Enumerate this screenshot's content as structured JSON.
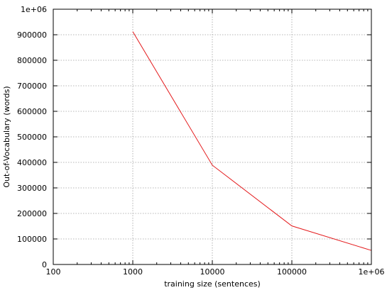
{
  "chart_data": {
    "type": "line",
    "xlabel": "training size (sentences)",
    "ylabel": "Out-of-Vocabulary (words)",
    "xscale": "log",
    "xlim": [
      100,
      1000000
    ],
    "ylim": [
      0,
      1000000
    ],
    "grid": true,
    "x_ticks": [
      {
        "value": 100,
        "label": "100"
      },
      {
        "value": 1000,
        "label": "1000"
      },
      {
        "value": 10000,
        "label": "10000"
      },
      {
        "value": 100000,
        "label": "100000"
      },
      {
        "value": 1000000,
        "label": "1e+06"
      }
    ],
    "y_ticks": [
      {
        "value": 0,
        "label": "0"
      },
      {
        "value": 100000,
        "label": "100000"
      },
      {
        "value": 200000,
        "label": "200000"
      },
      {
        "value": 300000,
        "label": "300000"
      },
      {
        "value": 400000,
        "label": "400000"
      },
      {
        "value": 500000,
        "label": "500000"
      },
      {
        "value": 600000,
        "label": "600000"
      },
      {
        "value": 700000,
        "label": "700000"
      },
      {
        "value": 800000,
        "label": "800000"
      },
      {
        "value": 900000,
        "label": "900000"
      },
      {
        "value": 1000000,
        "label": "1e+06"
      }
    ],
    "series": [
      {
        "color": "#e41a1c",
        "x": [
          1000,
          10000,
          100000,
          1000000
        ],
        "y": [
          912000,
          389000,
          151000,
          55000
        ]
      }
    ]
  }
}
